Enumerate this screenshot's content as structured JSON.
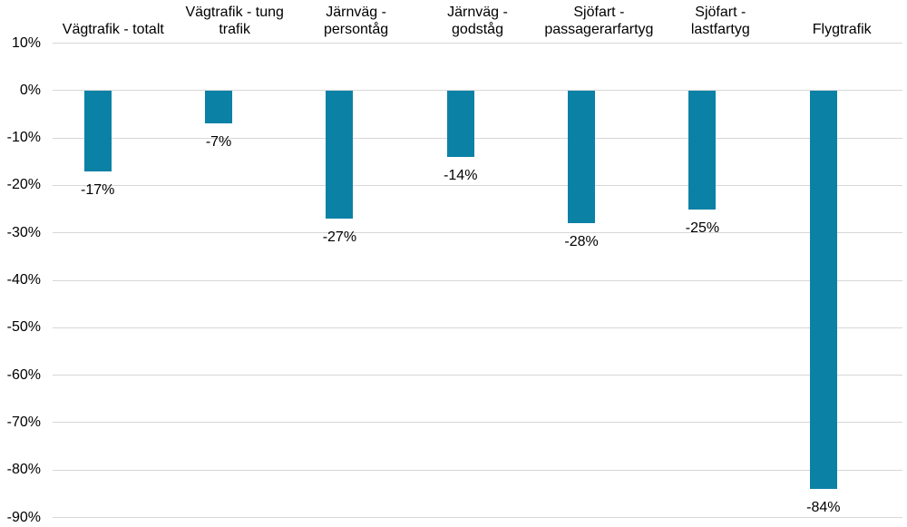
{
  "chart_data": {
    "type": "bar",
    "title": "",
    "xlabel": "",
    "ylabel": "",
    "unit": "%",
    "categories": [
      "Vägtrafik - totalt",
      "Vägtrafik - tung trafik",
      "Järnväg - persontåg",
      "Järnväg - godståg",
      "Sjöfart - passagerarfartyg",
      "Sjöfart - lastfartyg",
      "Flygtrafik"
    ],
    "category_label_lines": [
      [
        "Vägtrafik - totalt"
      ],
      [
        "Vägtrafik - tung",
        "trafik"
      ],
      [
        "Järnväg -",
        "persontåg"
      ],
      [
        "Järnväg -",
        "godståg"
      ],
      [
        "Sjöfart -",
        "passagerarfartyg"
      ],
      [
        "Sjöfart -",
        "lastfartyg"
      ],
      [
        "Flygtrafik"
      ]
    ],
    "values": [
      -17,
      -7,
      -27,
      -14,
      -28,
      -25,
      -84
    ],
    "data_labels": [
      "-17%",
      "-7%",
      "-27%",
      "-14%",
      "-28%",
      "-25%",
      "-84%"
    ],
    "y_axis": {
      "tick_labels": [
        "10%",
        "0%",
        "-10%",
        "-20%",
        "-30%",
        "-40%",
        "-50%",
        "-60%",
        "-70%",
        "-80%",
        "-90%"
      ],
      "tick_values": [
        10,
        0,
        -10,
        -20,
        -30,
        -40,
        -50,
        -60,
        -70,
        -80,
        -90
      ],
      "min": -90,
      "max": 10
    },
    "ylim": [
      -90,
      10
    ],
    "grid": true,
    "legend": false,
    "colors": {
      "bar": "#0b81a6",
      "gridline": "#d7d7d7",
      "text": "#000000",
      "background": "#ffffff"
    }
  }
}
